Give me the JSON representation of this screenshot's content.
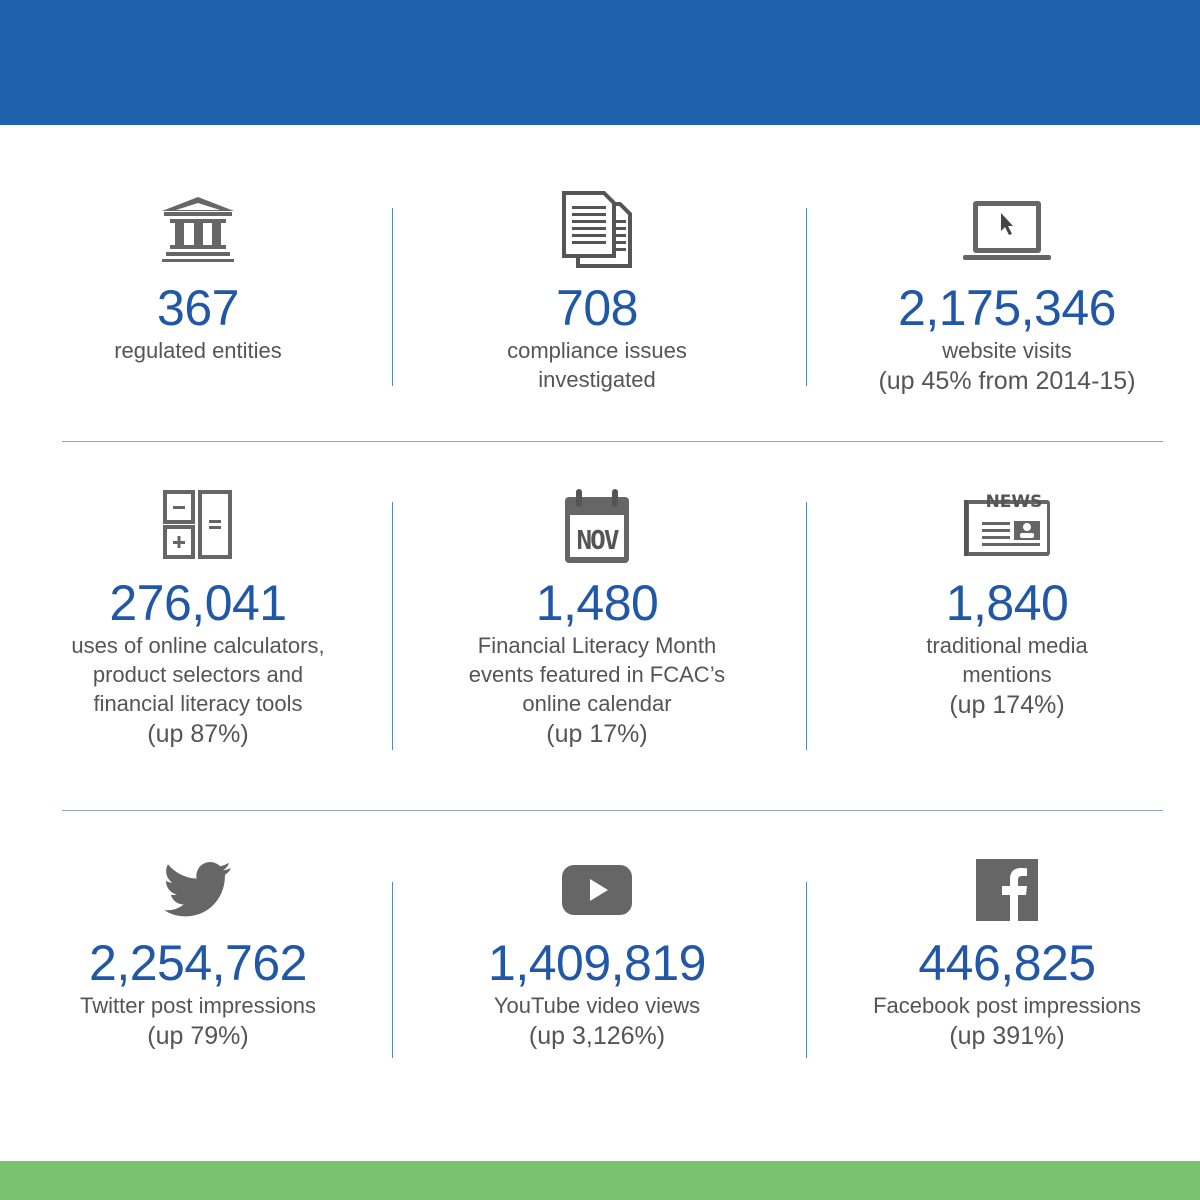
{
  "colors": {
    "header": "#1f61ad",
    "footer": "#79c270",
    "number": "#2057a6",
    "text": "#555555",
    "icon": "#666666"
  },
  "stats": [
    {
      "icon": "bank-icon",
      "number": "367",
      "lines": [
        "regulated entities"
      ],
      "change": ""
    },
    {
      "icon": "documents-icon",
      "number": "708",
      "lines": [
        "compliance issues",
        "investigated"
      ],
      "change": ""
    },
    {
      "icon": "laptop-cursor-icon",
      "number": "2,175,346",
      "lines": [
        "website visits"
      ],
      "change": "(up 45% from 2014-15)"
    },
    {
      "icon": "calculator-icon",
      "number": "276,041",
      "lines": [
        "uses of online calculators,",
        "product selectors and",
        "financial literacy tools"
      ],
      "change": "(up 87%)"
    },
    {
      "icon": "calendar-icon",
      "icon_text": "NOV",
      "number": "1,480",
      "lines": [
        "Financial Literacy Month",
        "events featured in FCAC’s",
        "online calendar"
      ],
      "change": "(up 17%)"
    },
    {
      "icon": "newspaper-icon",
      "icon_text": "NEWS",
      "number": "1,840",
      "lines": [
        "traditional media",
        "mentions"
      ],
      "change": "(up 174%)"
    },
    {
      "icon": "twitter-icon",
      "number": "2,254,762",
      "lines": [
        "Twitter post impressions"
      ],
      "change": "(up 79%)"
    },
    {
      "icon": "youtube-icon",
      "number": "1,409,819",
      "lines": [
        "YouTube video views"
      ],
      "change": "(up 3,126%)"
    },
    {
      "icon": "facebook-icon",
      "number": "446,825",
      "lines": [
        "Facebook post impressions"
      ],
      "change": "(up 391%)"
    }
  ]
}
